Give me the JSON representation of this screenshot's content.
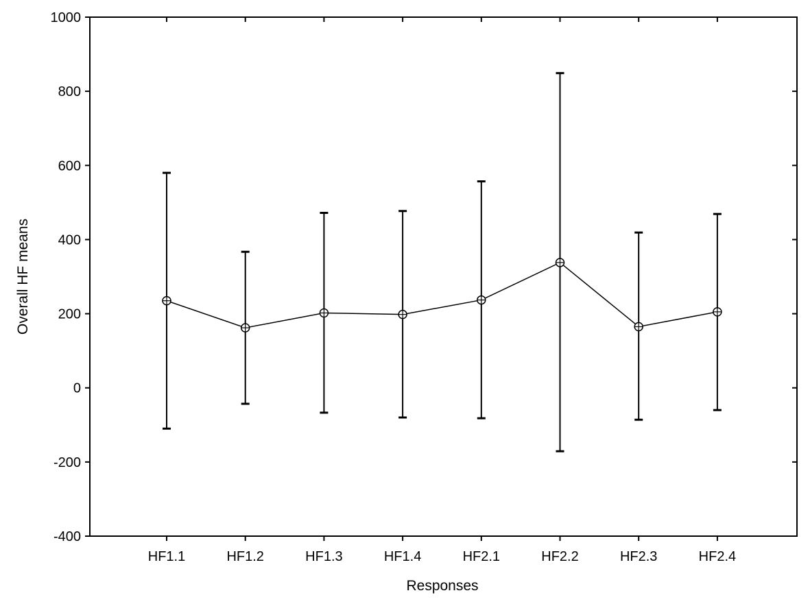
{
  "chart_data": {
    "type": "line",
    "title": "",
    "xlabel": "Responses",
    "ylabel": "Overall HF means",
    "ylim": [
      -400,
      1000
    ],
    "yticks": [
      -400,
      -200,
      0,
      200,
      400,
      600,
      800,
      1000
    ],
    "categories": [
      "HF1.1",
      "HF1.2",
      "HF1.3",
      "HF1.4",
      "HF2.1",
      "HF2.2",
      "HF2.3",
      "HF2.4"
    ],
    "series": [
      {
        "values": [
          235,
          162,
          202,
          198,
          237,
          338,
          165,
          205
        ],
        "error_low": [
          -110,
          -43,
          -67,
          -80,
          -82,
          -171,
          -86,
          -60
        ],
        "error_high": [
          580,
          367,
          472,
          477,
          557,
          849,
          419,
          469
        ]
      }
    ],
    "grid": false,
    "legend": false,
    "colors": {
      "line": "#000000",
      "marker_fill": "#ffffff"
    }
  }
}
